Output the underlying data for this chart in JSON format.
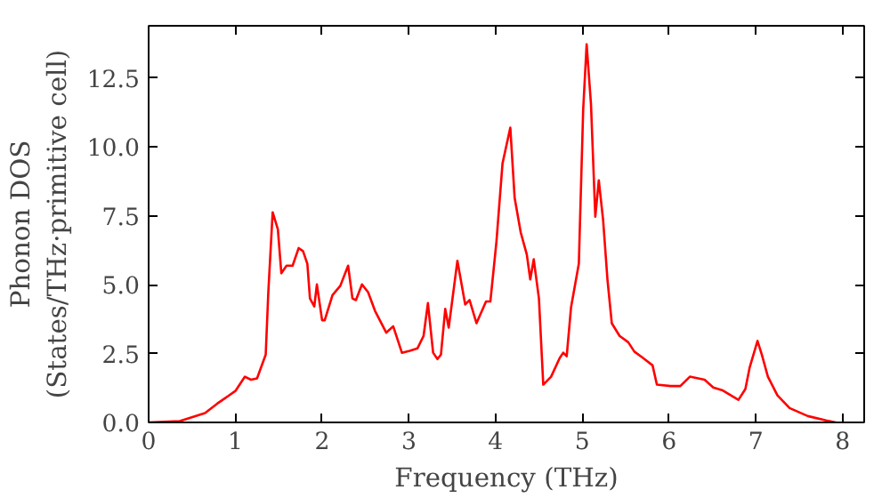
{
  "chart_data": {
    "type": "line",
    "xlabel": "Frequency (THz)",
    "ylabel": "Phonon DOS\n(States/THz·primitive cell)",
    "xlim": [
      0,
      8.25
    ],
    "ylim": [
      0,
      14.4
    ],
    "xticks": [
      0,
      1,
      2,
      3,
      4,
      5,
      6,
      7,
      8
    ],
    "yticks": [
      {
        "value": 0,
        "label": "0.0"
      },
      {
        "value": 2.5,
        "label": "2.5"
      },
      {
        "value": 5,
        "label": "5.0"
      },
      {
        "value": 7.5,
        "label": "7.5"
      },
      {
        "value": 10,
        "label": "10.0"
      },
      {
        "value": 12.5,
        "label": "12.5"
      }
    ],
    "grid": false,
    "line_style": "solid",
    "series": [
      {
        "color": "#ff0000",
        "x": [
          0,
          0.36,
          0.65,
          0.79,
          1.0,
          1.11,
          1.18,
          1.25,
          1.35,
          1.38,
          1.43,
          1.49,
          1.53,
          1.59,
          1.66,
          1.73,
          1.78,
          1.83,
          1.86,
          1.91,
          1.94,
          2.0,
          2.03,
          2.12,
          2.21,
          2.3,
          2.35,
          2.39,
          2.46,
          2.53,
          2.61,
          2.74,
          2.82,
          2.92,
          3.01,
          3.1,
          3.17,
          3.22,
          3.28,
          3.33,
          3.37,
          3.42,
          3.46,
          3.56,
          3.65,
          3.7,
          3.78,
          3.89,
          3.94,
          4.01,
          4.08,
          4.17,
          4.22,
          4.29,
          4.36,
          4.4,
          4.44,
          4.5,
          4.55,
          4.64,
          4.74,
          4.78,
          4.82,
          4.87,
          4.96,
          5.01,
          5.05,
          5.1,
          5.15,
          5.19,
          5.24,
          5.29,
          5.34,
          5.43,
          5.53,
          5.6,
          5.7,
          5.81,
          5.86,
          6.02,
          6.13,
          6.24,
          6.41,
          6.51,
          6.62,
          6.8,
          6.88,
          6.93,
          7.02,
          7.07,
          7.14,
          7.25,
          7.39,
          7.6,
          7.81,
          7.92
        ],
        "values": [
          0,
          0.05,
          0.34,
          0.68,
          1.14,
          1.66,
          1.55,
          1.6,
          2.46,
          4.73,
          7.63,
          7.01,
          5.42,
          5.69,
          5.69,
          6.33,
          6.22,
          5.76,
          4.5,
          4.21,
          5.01,
          3.71,
          3.71,
          4.62,
          4.96,
          5.69,
          4.5,
          4.44,
          5.01,
          4.73,
          4.05,
          3.26,
          3.49,
          2.53,
          2.6,
          2.69,
          3.14,
          4.33,
          2.53,
          2.3,
          2.46,
          4.12,
          3.44,
          5.87,
          4.28,
          4.44,
          3.6,
          4.39,
          4.39,
          6.56,
          9.4,
          10.7,
          8.15,
          6.9,
          6.1,
          5.19,
          5.92,
          4.5,
          1.37,
          1.66,
          2.34,
          2.53,
          2.4,
          4.17,
          5.76,
          11.34,
          13.73,
          11.56,
          7.47,
          8.79,
          7.35,
          5.19,
          3.6,
          3.14,
          2.91,
          2.57,
          2.34,
          2.07,
          1.37,
          1.32,
          1.32,
          1.66,
          1.55,
          1.27,
          1.16,
          0.82,
          1.21,
          2.0,
          2.96,
          2.46,
          1.66,
          0.98,
          0.52,
          0.23,
          0.07,
          0
        ]
      }
    ]
  }
}
